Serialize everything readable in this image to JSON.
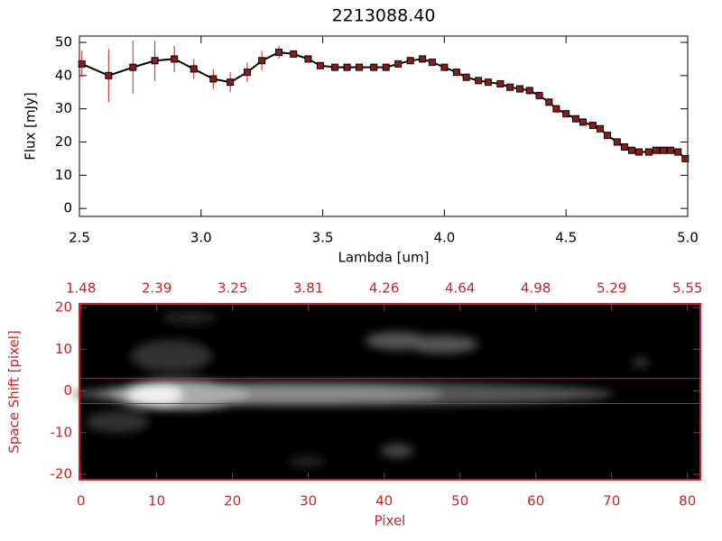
{
  "chart_data": [
    {
      "type": "line",
      "title": "2213088.40",
      "x_label": "Lambda [um]",
      "y_label": "Flux [mJy]",
      "x": [
        2.51,
        2.62,
        2.72,
        2.81,
        2.89,
        2.97,
        3.05,
        3.12,
        3.19,
        3.25,
        3.32,
        3.38,
        3.44,
        3.49,
        3.55,
        3.6,
        3.65,
        3.71,
        3.76,
        3.81,
        3.86,
        3.91,
        3.95,
        4.0,
        4.05,
        4.09,
        4.14,
        4.18,
        4.23,
        4.27,
        4.31,
        4.35,
        4.39,
        4.43,
        4.46,
        4.5,
        4.54,
        4.57,
        4.61,
        4.64,
        4.67,
        4.71,
        4.74,
        4.77,
        4.8,
        4.84,
        4.87,
        4.9,
        4.93,
        4.96,
        4.99
      ],
      "values": [
        43.5,
        40,
        42.5,
        44.5,
        45,
        42,
        39,
        38,
        41,
        44.5,
        47,
        46.5,
        45,
        43,
        42.5,
        42.5,
        42.5,
        42.5,
        42.5,
        43.5,
        44.5,
        45,
        44,
        42.5,
        41,
        39.5,
        38.5,
        38,
        37.5,
        36.5,
        36,
        35.5,
        34,
        32,
        30,
        28.5,
        27,
        26,
        25,
        24,
        22,
        20,
        18.5,
        17.5,
        17,
        17,
        17.5,
        17.5,
        17.5,
        17,
        15
      ],
      "errors": [
        4,
        8,
        8,
        6,
        4,
        3,
        3,
        3,
        3,
        3,
        2,
        1,
        0.5,
        0.5,
        0.5,
        0.5,
        0.5,
        0.5,
        0.5,
        0.5,
        0.5,
        0.5,
        0.5,
        0.5,
        0.5,
        0.5,
        0.5,
        0.5,
        0.5,
        0.5,
        0.5,
        0.5,
        0.5,
        0.5,
        0.5,
        0.5,
        0.5,
        0.5,
        0.5,
        0.5,
        0.5,
        0.5,
        0.5,
        0.5,
        0.5,
        0.5,
        0.5,
        0.5,
        0.5,
        0.5,
        0.5
      ],
      "color": "#000000",
      "marker_color": "#8b1a1a",
      "error_color": "#cc2222",
      "xlim": [
        2.5,
        5.0
      ],
      "ylim": [
        -2.4,
        51.9
      ],
      "xticks": [
        2.5,
        {
          "value": 3,
          "label": "3.0"
        },
        3.5,
        {
          "value": 4,
          "label": "4.0"
        },
        4.5,
        {
          "value": 5,
          "label": "5.0"
        }
      ],
      "yticks": [
        0,
        10,
        20,
        30,
        40,
        50
      ]
    },
    {
      "type": "image",
      "x_label": "Pixel",
      "y_label": "Space Shift [pixel]",
      "color": "#cc2222",
      "xlim": [
        -0.2,
        81.7
      ],
      "ylim": [
        -21.3,
        20.9
      ],
      "xticks": [
        0,
        10,
        20,
        30,
        40,
        50,
        60,
        70,
        80
      ],
      "x2ticks": [
        {
          "value": 0,
          "label": "1.48"
        },
        {
          "value": 10,
          "label": "2.39"
        },
        {
          "value": 20,
          "label": "3.25"
        },
        {
          "value": 30,
          "label": "3.81"
        },
        {
          "value": 40,
          "label": "4.26"
        },
        {
          "value": 50,
          "label": "4.64"
        },
        {
          "value": 60,
          "label": "4.98"
        },
        {
          "value": 70,
          "label": "5.29"
        },
        {
          "value": 80,
          "label": "5.55"
        }
      ],
      "yticks": [
        -20,
        -10,
        0,
        10,
        20
      ],
      "lines": [
        3,
        -3
      ]
    }
  ]
}
